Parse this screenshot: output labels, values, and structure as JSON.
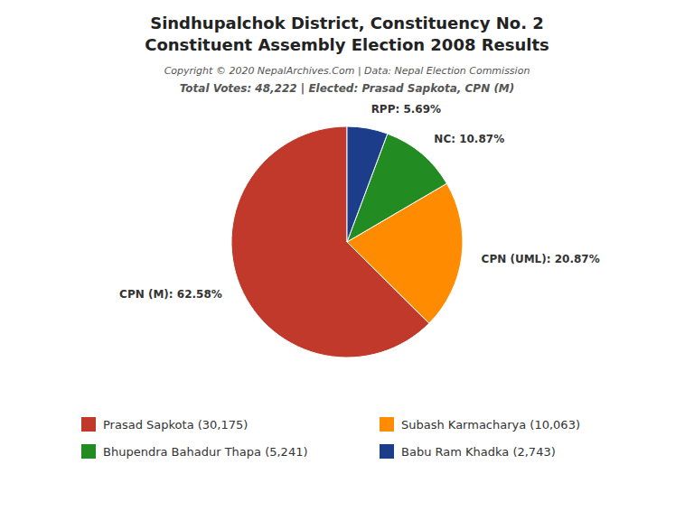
{
  "chart_data": {
    "type": "pie",
    "title": [
      "Sindhupalchok District, Constituency No. 2",
      "Constituent Assembly Election 2008 Results"
    ],
    "annotations": [
      "Copyright © 2020 NepalArchives.Com | Data: Nepal Election Commission",
      "Total Votes: 48,222 | Elected: Prasad Sapkota, CPN (M)"
    ],
    "categories": [
      "Prasad Sapkota (30,175)",
      "Subash Karmacharya (10,063)",
      "Bhupendra Bahadur Thapa (5,241)",
      "Babu Ram Khadka (2,743)"
    ],
    "values": [
      62.58,
      20.87,
      10.87,
      5.69
    ],
    "value_labels": [
      "CPN (M): 62.58%",
      "CPN (UML): 20.87%",
      "NC: 10.87%",
      "RPP: 5.69%"
    ],
    "colors": [
      "#C0392B",
      "#FF8C00",
      "#228B22",
      "#1C3E8A"
    ],
    "data_labels": true
  }
}
